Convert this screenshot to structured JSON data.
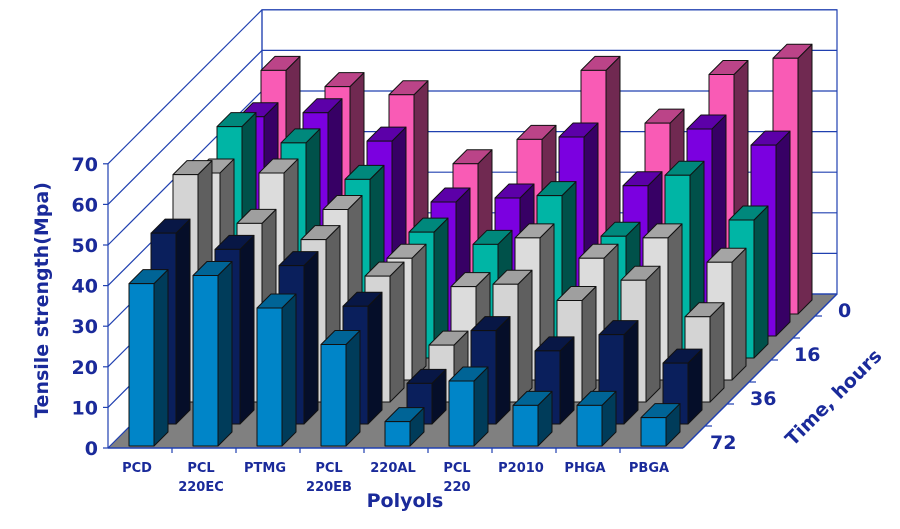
{
  "chart_data": {
    "type": "bar",
    "subtype": "3d-column",
    "title": "",
    "xlabel": "Polyols",
    "ylabel": "Tensile strength(Mpa)",
    "zlabel": "Time, hours",
    "ylim": [
      0,
      70
    ],
    "yticks": [
      "0",
      "10",
      "20",
      "30",
      "40",
      "50",
      "60",
      "70"
    ],
    "grid": true,
    "categories": [
      [
        "PCD"
      ],
      [
        "PCL",
        "220EC"
      ],
      [
        "PTMG"
      ],
      [
        "PCL",
        "220EB"
      ],
      [
        "220AL"
      ],
      [
        "PCL",
        "220"
      ],
      [
        "P2010"
      ],
      [
        "PHGA"
      ],
      [
        "PBGA"
      ]
    ],
    "depth_labels": [
      "72",
      "",
      "36",
      "",
      "16",
      "",
      "0"
    ],
    "series": [
      {
        "depth_label": "72",
        "color": "#0085C8",
        "values": [
          40,
          42,
          34,
          25,
          6,
          16,
          10,
          10,
          7
        ]
      },
      {
        "depth_label": "",
        "color": "#0A1F5C",
        "values": [
          47,
          43,
          39,
          29,
          10,
          23,
          18,
          22,
          15
        ]
      },
      {
        "depth_label": "36",
        "color": "#D4D4D4",
        "values": [
          56,
          44,
          40,
          31,
          14,
          29,
          25,
          30,
          21
        ]
      },
      {
        "depth_label": "",
        "color": "#DCDCDC",
        "values": [
          51,
          51,
          42,
          30,
          23,
          35,
          30,
          35,
          29
        ]
      },
      {
        "depth_label": "16",
        "color": "#00B5A5",
        "values": [
          57,
          53,
          44,
          31,
          28,
          40,
          30,
          45,
          34
        ]
      },
      {
        "depth_label": "",
        "color": "#7B00E0",
        "values": [
          54,
          55,
          48,
          33,
          34,
          49,
          37,
          51,
          47
        ]
      },
      {
        "depth_label": "0",
        "color": "#F95BB5",
        "values": [
          60,
          56,
          54,
          37,
          43,
          60,
          47,
          59,
          63
        ]
      }
    ]
  },
  "colors": {
    "axis": "#2040B0",
    "label": "#1a2a9a",
    "floor": "#808080"
  }
}
